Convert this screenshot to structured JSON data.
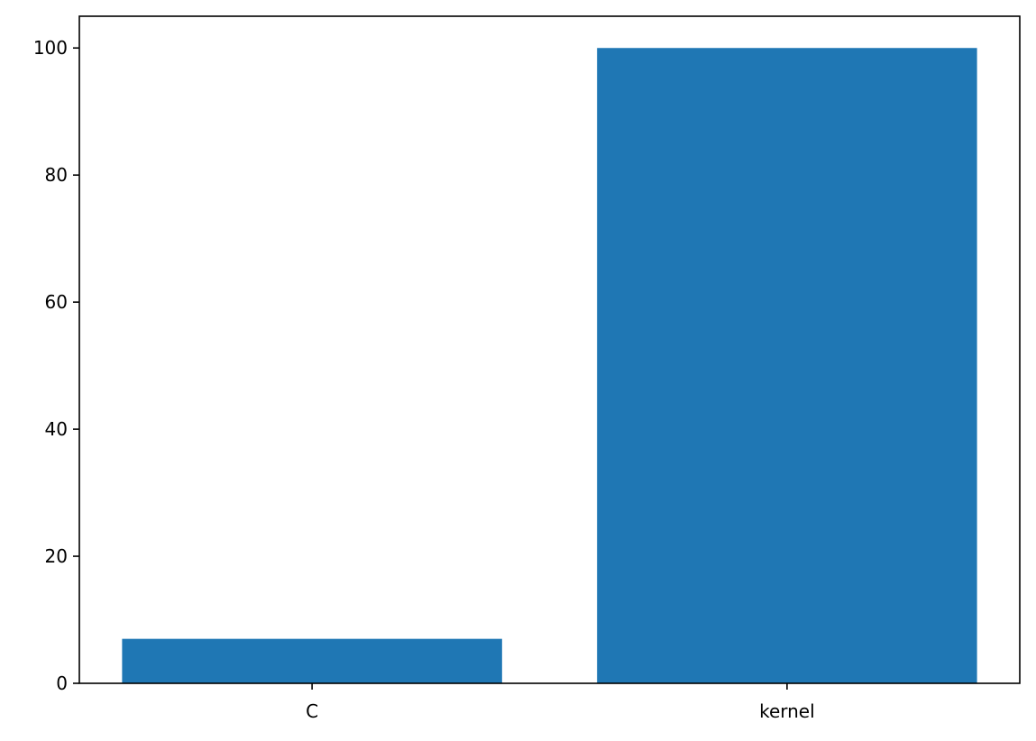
{
  "chart_data": {
    "type": "bar",
    "categories": [
      "C",
      "kernel"
    ],
    "values": [
      7,
      100
    ],
    "ylim": [
      0,
      105
    ],
    "yticks": [
      0,
      20,
      40,
      60,
      80,
      100
    ],
    "title": "",
    "xlabel": "",
    "ylabel": "",
    "grid": false,
    "colors": {
      "bar": "#1f77b4",
      "axis": "#000000",
      "background": "#ffffff"
    }
  }
}
